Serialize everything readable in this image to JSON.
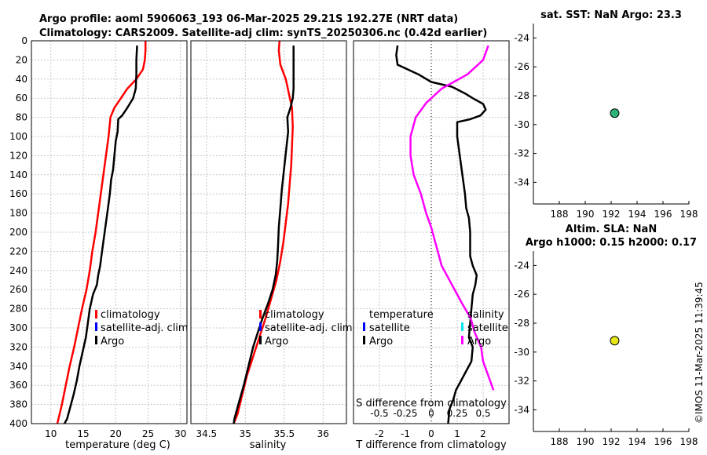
{
  "header": {
    "line1": "Argo profile: aoml 5906063_193 06-Mar-2025 29.21S 192.27E (NRT data)",
    "line2": "Climatology: CARS2009. Satellite-adj clim: synTS_20250306.nc (0.42d earlier)"
  },
  "timestamp": "©IMOS 11-Mar-2025 11:39:45",
  "colors": {
    "clim": "#ff0000",
    "sat": "#0000ff",
    "argo": "#000000",
    "sat_s": "#00e5ee",
    "argo_s": "#ff00ff",
    "sst_dot": "#2db37a",
    "sla_dot": "#e6e61a",
    "grid": "#c8c8c8"
  },
  "chart_data": [
    {
      "name": "temperature",
      "type": "line",
      "xlabel": "temperature (deg C)",
      "xlim": [
        7,
        31
      ],
      "ylim": [
        0,
        400
      ],
      "xticks": [
        10,
        15,
        20,
        25,
        30
      ],
      "yticks": [
        0,
        20,
        40,
        60,
        80,
        100,
        120,
        140,
        160,
        180,
        200,
        220,
        240,
        260,
        280,
        300,
        320,
        340,
        360,
        380,
        400
      ],
      "legend": [
        "climatology",
        "satellite-adj. clim",
        "Argo"
      ],
      "series": [
        {
          "name": "climatology",
          "color": "#ff0000",
          "points": [
            [
              24.6,
              0
            ],
            [
              24.6,
              10
            ],
            [
              24.5,
              20
            ],
            [
              24.2,
              30
            ],
            [
              23.2,
              40
            ],
            [
              21.8,
              50
            ],
            [
              20.8,
              60
            ],
            [
              19.8,
              70
            ],
            [
              19.2,
              80
            ],
            [
              18.9,
              100
            ],
            [
              18.5,
              120
            ],
            [
              18.1,
              140
            ],
            [
              17.7,
              160
            ],
            [
              17.3,
              180
            ],
            [
              16.9,
              200
            ],
            [
              16.4,
              220
            ],
            [
              16.0,
              240
            ],
            [
              15.5,
              260
            ],
            [
              14.8,
              280
            ],
            [
              14.2,
              300
            ],
            [
              13.6,
              320
            ],
            [
              12.9,
              340
            ],
            [
              12.3,
              360
            ],
            [
              11.7,
              380
            ],
            [
              11.0,
              400
            ]
          ]
        },
        {
          "name": "Argo",
          "color": "#000000",
          "points": [
            [
              23.3,
              5
            ],
            [
              23.2,
              20
            ],
            [
              23.2,
              35
            ],
            [
              23.1,
              50
            ],
            [
              22.7,
              60
            ],
            [
              21.8,
              70
            ],
            [
              21.0,
              78
            ],
            [
              20.4,
              82
            ],
            [
              20.3,
              95
            ],
            [
              20.0,
              105
            ],
            [
              19.8,
              120
            ],
            [
              19.6,
              135
            ],
            [
              19.3,
              145
            ],
            [
              19.1,
              160
            ],
            [
              18.8,
              175
            ],
            [
              18.5,
              190
            ],
            [
              18.2,
              205
            ],
            [
              17.9,
              220
            ],
            [
              17.6,
              235
            ],
            [
              17.3,
              245
            ],
            [
              17.1,
              255
            ],
            [
              16.5,
              265
            ],
            [
              16.0,
              280
            ],
            [
              15.7,
              295
            ],
            [
              15.4,
              310
            ],
            [
              14.9,
              325
            ],
            [
              14.4,
              340
            ],
            [
              14.0,
              355
            ],
            [
              13.5,
              370
            ],
            [
              12.9,
              385
            ],
            [
              12.5,
              395
            ],
            [
              12.1,
              400
            ]
          ]
        }
      ]
    },
    {
      "name": "salinity",
      "type": "line",
      "xlabel": "salinity",
      "xlim": [
        34.3,
        36.3
      ],
      "ylim": [
        0,
        400
      ],
      "xticks": [
        34.5,
        35,
        35.5,
        36
      ],
      "xtick_labels": [
        "34.5",
        "35",
        "35.5",
        "36"
      ],
      "legend": [
        "climatology",
        "satellite-adj. clim",
        "Argo"
      ],
      "series": [
        {
          "name": "climatology",
          "color": "#ff0000",
          "points": [
            [
              35.44,
              0
            ],
            [
              35.43,
              10
            ],
            [
              35.45,
              25
            ],
            [
              35.52,
              40
            ],
            [
              35.56,
              55
            ],
            [
              35.6,
              70
            ],
            [
              35.61,
              90
            ],
            [
              35.6,
              110
            ],
            [
              35.59,
              130
            ],
            [
              35.57,
              150
            ],
            [
              35.55,
              170
            ],
            [
              35.52,
              190
            ],
            [
              35.49,
              210
            ],
            [
              35.45,
              230
            ],
            [
              35.4,
              250
            ],
            [
              35.33,
              270
            ],
            [
              35.26,
              290
            ],
            [
              35.18,
              310
            ],
            [
              35.1,
              330
            ],
            [
              35.02,
              350
            ],
            [
              34.96,
              370
            ],
            [
              34.9,
              390
            ],
            [
              34.85,
              400
            ]
          ]
        },
        {
          "name": "Argo",
          "color": "#000000",
          "points": [
            [
              35.62,
              5
            ],
            [
              35.62,
              30
            ],
            [
              35.62,
              50
            ],
            [
              35.61,
              60
            ],
            [
              35.58,
              70
            ],
            [
              35.54,
              80
            ],
            [
              35.55,
              95
            ],
            [
              35.53,
              110
            ],
            [
              35.51,
              125
            ],
            [
              35.49,
              140
            ],
            [
              35.47,
              155
            ],
            [
              35.45,
              175
            ],
            [
              35.43,
              195
            ],
            [
              35.42,
              215
            ],
            [
              35.41,
              230
            ],
            [
              35.39,
              245
            ],
            [
              35.35,
              260
            ],
            [
              35.29,
              275
            ],
            [
              35.22,
              290
            ],
            [
              35.16,
              305
            ],
            [
              35.1,
              320
            ],
            [
              35.04,
              340
            ],
            [
              34.98,
              360
            ],
            [
              34.91,
              380
            ],
            [
              34.86,
              395
            ],
            [
              34.85,
              400
            ]
          ]
        }
      ]
    },
    {
      "name": "differences",
      "type": "line",
      "xlabel": "T difference from climatology",
      "toplabel": "S difference from climatology",
      "xlim": [
        -3,
        3
      ],
      "ylim": [
        0,
        400
      ],
      "xticks": [
        -2,
        -1,
        0,
        1,
        2
      ],
      "xtick_labels": [
        "-2",
        "-1",
        "0",
        "1",
        "2"
      ],
      "sticks": [
        -0.5,
        -0.25,
        0,
        0.25,
        0.5
      ],
      "stick_labels": [
        "-0.5",
        "-0.25",
        "0",
        "0.25",
        "0.5"
      ],
      "legend_left": {
        "title": "temperature",
        "items": [
          "satellite",
          "Argo"
        ]
      },
      "legend_right": {
        "title": "salinity",
        "items": [
          "satellite",
          "Argo"
        ]
      },
      "series": [
        {
          "name": "T diff Argo",
          "color": "#000000",
          "points": [
            [
              -1.3,
              5
            ],
            [
              -1.35,
              15
            ],
            [
              -1.3,
              25
            ],
            [
              -0.5,
              35
            ],
            [
              0.0,
              43
            ],
            [
              0.8,
              48
            ],
            [
              1.3,
              55
            ],
            [
              1.6,
              60
            ],
            [
              2.0,
              66
            ],
            [
              2.1,
              72
            ],
            [
              1.9,
              78
            ],
            [
              1.5,
              82
            ],
            [
              1.0,
              85
            ],
            [
              1.0,
              100
            ],
            [
              1.1,
              120
            ],
            [
              1.2,
              140
            ],
            [
              1.3,
              160
            ],
            [
              1.35,
              175
            ],
            [
              1.45,
              185
            ],
            [
              1.5,
              200
            ],
            [
              1.5,
              215
            ],
            [
              1.5,
              225
            ],
            [
              1.6,
              235
            ],
            [
              1.75,
              245
            ],
            [
              1.7,
              255
            ],
            [
              1.6,
              265
            ],
            [
              1.55,
              280
            ],
            [
              1.5,
              295
            ],
            [
              1.45,
              310
            ],
            [
              1.6,
              320
            ],
            [
              1.55,
              335
            ],
            [
              1.35,
              345
            ],
            [
              1.15,
              355
            ],
            [
              0.95,
              365
            ],
            [
              0.85,
              375
            ],
            [
              0.7,
              385
            ],
            [
              0.65,
              400
            ]
          ]
        },
        {
          "name": "S diff Argo",
          "color": "#ff00ff",
          "points": [
            [
              0.55,
              5
            ],
            [
              0.5,
              20
            ],
            [
              0.35,
              35
            ],
            [
              0.1,
              50
            ],
            [
              -0.05,
              65
            ],
            [
              -0.15,
              80
            ],
            [
              -0.2,
              100
            ],
            [
              -0.2,
              120
            ],
            [
              -0.17,
              140
            ],
            [
              -0.1,
              160
            ],
            [
              -0.05,
              180
            ],
            [
              0.0,
              195
            ],
            [
              0.05,
              215
            ],
            [
              0.1,
              235
            ],
            [
              0.2,
              255
            ],
            [
              0.3,
              275
            ],
            [
              0.38,
              290
            ],
            [
              0.42,
              305
            ],
            [
              0.48,
              320
            ],
            [
              0.5,
              335
            ],
            [
              0.55,
              350
            ],
            [
              0.6,
              365
            ]
          ]
        }
      ]
    },
    {
      "name": "sst-map",
      "type": "scatter",
      "title": "sat. SST: NaN Argo: 23.3",
      "xlim": [
        186,
        198
      ],
      "ylim": [
        -35.5,
        -23
      ],
      "xticks": [
        188,
        190,
        192,
        194,
        196,
        198
      ],
      "yticks": [
        -24,
        -26,
        -28,
        -30,
        -32,
        -34
      ],
      "points": [
        [
          192.27,
          -29.21
        ]
      ]
    },
    {
      "name": "sla-map",
      "type": "scatter",
      "title": "Altim. SLA: NaN",
      "subtitle": "Argo h1000: 0.15 h2000: 0.17",
      "xlim": [
        186,
        198
      ],
      "ylim": [
        -35.5,
        -23
      ],
      "xticks": [
        188,
        190,
        192,
        194,
        196,
        198
      ],
      "yticks": [
        -24,
        -26,
        -28,
        -30,
        -32,
        -34
      ],
      "points": [
        [
          192.27,
          -29.21
        ]
      ]
    }
  ]
}
